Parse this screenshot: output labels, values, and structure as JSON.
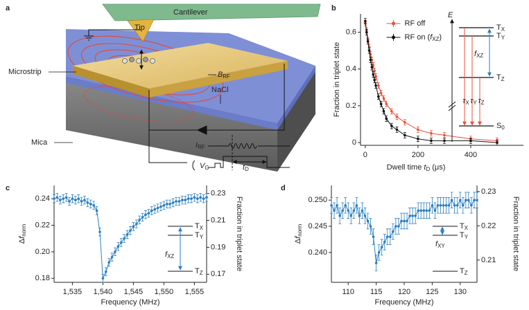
{
  "panel_labels": [
    "a",
    "b",
    "c",
    "d"
  ],
  "panel_a": {
    "cantilever": "Cantilever",
    "tip": "Tip",
    "microstrip": "Microstrip",
    "b_rf": [
      {
        "i": "B"
      },
      {
        "sub": "RF"
      }
    ],
    "nacl": "NaCl",
    "mica": "Mica",
    "i_rf": [
      {
        "i": "I"
      },
      {
        "sub": "RF"
      }
    ],
    "v_g": [
      {
        "i": "V"
      },
      {
        "sub": "G"
      }
    ],
    "t_d": [
      {
        "i": "t"
      },
      {
        "sub": "D"
      }
    ]
  },
  "chart_data": [
    {
      "type": "scatter",
      "x": [
        0,
        5,
        10,
        15,
        20,
        25,
        30,
        35,
        40,
        50,
        60,
        70,
        80,
        100,
        120,
        150,
        200,
        250,
        300,
        400,
        500
      ],
      "xlim": [
        -18,
        600
      ],
      "xticks": [
        0,
        200,
        400
      ],
      "ylim": [
        -0.015,
        0.7
      ],
      "yticks": [
        0,
        0.2,
        0.4,
        0.6
      ],
      "x_label": [
        "Dwell time ",
        {
          "i": "t"
        },
        {
          "sub": "D"
        },
        " (μs)"
      ],
      "y_label": "Fraction in triplet state",
      "error": 0.015,
      "legend": "upper center",
      "series": [
        {
          "name": "RF off",
          "color": "#e8503a",
          "values": [
            0.65,
            0.61,
            0.56,
            0.52,
            0.48,
            0.45,
            0.42,
            0.39,
            0.36,
            0.31,
            0.27,
            0.24,
            0.21,
            0.17,
            0.14,
            0.11,
            0.07,
            0.05,
            0.04,
            0.02,
            0.01
          ]
        },
        {
          "name": [
            "RF on (",
            {
              "i": "f"
            },
            {
              "sub": "XZ"
            },
            ")"
          ],
          "color": "#111111",
          "values": [
            0.66,
            0.6,
            0.55,
            0.5,
            0.45,
            0.41,
            0.37,
            0.34,
            0.31,
            0.25,
            0.21,
            0.17,
            0.13,
            0.09,
            0.07,
            0.04,
            0.02,
            0.01,
            0.01,
            0.01,
            0
          ]
        }
      ],
      "levels": {
        "axis": [
          {
            "i": "E"
          }
        ],
        "tx": [
          "T",
          {
            "sub": "X"
          }
        ],
        "ty": [
          "T",
          {
            "sub": "Y"
          }
        ],
        "fxz": [
          {
            "i": "f"
          },
          {
            "sub": "XZ"
          }
        ],
        "tz": [
          "T",
          {
            "sub": "Z"
          }
        ],
        "taus": [
          [
            {
              "i": "τ"
            },
            {
              "sub": "X"
            }
          ],
          [
            {
              "i": "τ"
            },
            {
              "sub": "Y"
            }
          ],
          [
            {
              "i": "τ"
            },
            {
              "sub": "Z"
            }
          ]
        ],
        "s0": [
          "S",
          {
            "sub": "0"
          }
        ]
      }
    },
    {
      "type": "scatter",
      "x": [
        1532,
        1532.5,
        1533,
        1533.5,
        1534,
        1534.5,
        1535,
        1535.5,
        1536,
        1536.5,
        1537,
        1537.5,
        1538,
        1538.5,
        1539,
        1539.5,
        1540,
        1540.5,
        1541,
        1541.5,
        1542,
        1542.5,
        1543,
        1543.5,
        1544,
        1544.5,
        1545,
        1545.5,
        1546,
        1546.5,
        1547,
        1547.5,
        1548,
        1548.5,
        1549,
        1549.5,
        1550,
        1550.5,
        1551,
        1551.5,
        1552,
        1552.5,
        1553,
        1553.5,
        1554,
        1554.5,
        1555,
        1555.5,
        1556,
        1556.5,
        1557
      ],
      "xlim": [
        1532,
        1557
      ],
      "xticks": [
        {
          "value": 1535,
          "label": "1,535"
        },
        {
          "value": 1540,
          "label": "1,540"
        },
        {
          "value": 1545,
          "label": "1,545"
        },
        {
          "value": 1550,
          "label": "1,550"
        },
        {
          "value": 1555,
          "label": "1,555"
        }
      ],
      "ylim": [
        0.177,
        0.25
      ],
      "yticks": [
        0.18,
        {
          "value": 0.2,
          "label": "0.20"
        },
        0.22,
        0.24
      ],
      "y2lim": [
        0.164,
        0.236
      ],
      "y2ticks": [
        0.17,
        0.19,
        0.21,
        0.23
      ],
      "x_label": "Frequency (MHz)",
      "y_label": [
        "Δ",
        {
          "i": "f"
        },
        {
          "sub": "norm"
        }
      ],
      "y2_label": "Fraction in triplet state",
      "error": 0.003,
      "series": [
        {
          "color": "#2a7fc1",
          "values": [
            0.24,
            0.241,
            0.239,
            0.24,
            0.241,
            0.238,
            0.24,
            0.239,
            0.24,
            0.238,
            0.239,
            0.237,
            0.236,
            0.235,
            0.231,
            0.215,
            0.18,
            0.185,
            0.192,
            0.196,
            0.2,
            0.204,
            0.207,
            0.21,
            0.213,
            0.216,
            0.219,
            0.221,
            0.224,
            0.226,
            0.228,
            0.229,
            0.231,
            0.232,
            0.233,
            0.234,
            0.235,
            0.236,
            0.236,
            0.237,
            0.238,
            0.238,
            0.239,
            0.239,
            0.24,
            0.24,
            0.241,
            0.24,
            0.241,
            0.24,
            0.241
          ]
        }
      ],
      "levels": {
        "tx": [
          "T",
          {
            "sub": "X"
          }
        ],
        "ty": [
          "T",
          {
            "sub": "Y"
          }
        ],
        "f": [
          {
            "i": "f"
          },
          {
            "sub": "XZ"
          }
        ],
        "tz": [
          "T",
          {
            "sub": "Z"
          }
        ]
      }
    },
    {
      "type": "scatter",
      "x": [
        107,
        107.5,
        108,
        108.5,
        109,
        109.5,
        110,
        110.5,
        111,
        111.5,
        112,
        112.5,
        113,
        113.5,
        114,
        114.5,
        115,
        115.5,
        116,
        116.5,
        117,
        117.5,
        118,
        118.5,
        119,
        119.5,
        120,
        120.5,
        121,
        121.5,
        122,
        122.5,
        123,
        123.5,
        124,
        124.5,
        125,
        125.5,
        126,
        126.5,
        127,
        127.5,
        128,
        128.5,
        129,
        129.5,
        130,
        130.5,
        131,
        131.5,
        132,
        132.5,
        133
      ],
      "xlim": [
        107,
        133
      ],
      "xticks": [
        110,
        115,
        120,
        125,
        130
      ],
      "ylim": [
        0.2343,
        0.2528
      ],
      "yticks": [
        {
          "value": 0.24,
          "label": "0.240"
        },
        0.245,
        {
          "value": 0.25,
          "label": "0.250"
        }
      ],
      "y2lim": [
        0.2035,
        0.2318
      ],
      "y2ticks": [
        0.21,
        0.22,
        0.23
      ],
      "x_label": "Frequency (MHz)",
      "y_label": [
        "Δ",
        {
          "i": "f"
        },
        {
          "sub": "norm"
        }
      ],
      "y2_label": "Fraction in triplet state",
      "error": 0.0015,
      "series": [
        {
          "color": "#2a7fc1",
          "values": [
            0.249,
            0.248,
            0.249,
            0.247,
            0.248,
            0.249,
            0.248,
            0.247,
            0.248,
            0.249,
            0.247,
            0.248,
            0.247,
            0.246,
            0.245,
            0.243,
            0.238,
            0.24,
            0.241,
            0.242,
            0.243,
            0.243,
            0.244,
            0.245,
            0.245,
            0.246,
            0.246,
            0.246,
            0.247,
            0.247,
            0.247,
            0.248,
            0.248,
            0.248,
            0.248,
            0.248,
            0.249,
            0.248,
            0.249,
            0.249,
            0.249,
            0.249,
            0.249,
            0.25,
            0.249,
            0.249,
            0.25,
            0.249,
            0.25,
            0.25,
            0.249,
            0.25,
            0.25
          ]
        }
      ],
      "levels": {
        "tx": [
          "T",
          {
            "sub": "X"
          }
        ],
        "ty": [
          "T",
          {
            "sub": "Y"
          }
        ],
        "f": [
          {
            "i": "f"
          },
          {
            "sub": "XY"
          }
        ],
        "tz": [
          "T",
          {
            "sub": "Z"
          }
        ]
      }
    }
  ]
}
